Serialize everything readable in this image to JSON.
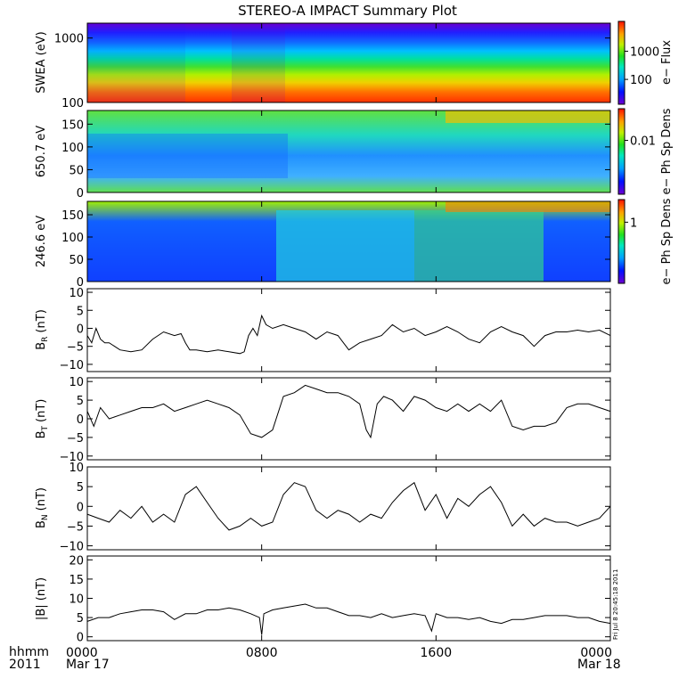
{
  "title": "STEREO-A IMPACT Summary Plot",
  "footer": {
    "left_top": "hhmm",
    "left_bottom": "2011",
    "date_start": "Mar 17",
    "date_end": "Mar 18"
  },
  "stamp": "Fri Jul 8 20:45:18 2011",
  "chart_data": [
    {
      "type": "heatmap",
      "panel": "swea",
      "ylabel": "SWEA (eV)",
      "yscale": "log",
      "ylim": [
        100,
        1700
      ],
      "yticks": [
        {
          "value": 1000,
          "label": "1000"
        },
        {
          "value": 100,
          "label": "100"
        }
      ],
      "colorbar": {
        "label": "e− Flux",
        "scale": "log",
        "ticks": [
          {
            "value": 1000,
            "label": "1000"
          },
          {
            "value": 100,
            "label": "100"
          }
        ]
      },
      "description_of_values": "high flux (red) at low energy, falling to low flux (blue) at high energy"
    },
    {
      "type": "heatmap",
      "panel": "pad650",
      "ylabel": "650.7 eV",
      "ylim": [
        0,
        180
      ],
      "yticks": [
        {
          "value": 150,
          "label": "150"
        },
        {
          "value": 100,
          "label": "100"
        },
        {
          "value": 50,
          "label": "50"
        },
        {
          "value": 0,
          "label": "0"
        }
      ],
      "colorbar": {
        "label": "e− Ph Sp Dens",
        "scale": "log",
        "ticks": [
          {
            "value": 0.01,
            "label": "0.01"
          }
        ]
      }
    },
    {
      "type": "heatmap",
      "panel": "pad246",
      "ylabel": "246.6 eV",
      "ylim": [
        0,
        180
      ],
      "yticks": [
        {
          "value": 150,
          "label": "150"
        },
        {
          "value": 100,
          "label": "100"
        },
        {
          "value": 50,
          "label": "50"
        },
        {
          "value": 0,
          "label": "0"
        }
      ],
      "colorbar": {
        "label": "e− Ph Sp Dens",
        "scale": "log",
        "ticks": [
          {
            "value": 1,
            "label": "1"
          }
        ]
      }
    },
    {
      "type": "line",
      "panel": "br",
      "ylabel": "B",
      "ylabel_sub": "R",
      "ylabel_unit": "(nT)",
      "ylim": [
        -12,
        11
      ],
      "yticks": [
        {
          "value": 10,
          "label": "10"
        },
        {
          "value": 5,
          "label": "5"
        },
        {
          "value": 0,
          "label": "0"
        },
        {
          "value": -5,
          "label": "−5"
        },
        {
          "value": -10,
          "label": "−10"
        }
      ],
      "x": [
        0,
        0.2,
        0.4,
        0.6,
        0.8,
        1,
        1.5,
        2,
        2.5,
        3,
        3.5,
        4,
        4.3,
        4.5,
        4.7,
        5,
        5.5,
        6,
        6.5,
        7,
        7.2,
        7.4,
        7.6,
        7.8,
        8,
        8.2,
        8.5,
        9,
        9.5,
        10,
        10.5,
        11,
        11.5,
        12,
        12.5,
        13,
        13.5,
        14,
        14.5,
        15,
        15.5,
        16,
        16.5,
        17,
        17.5,
        18,
        18.5,
        19,
        19.5,
        20,
        20.5,
        21,
        21.5,
        22,
        22.5,
        23,
        23.5,
        24
      ],
      "values": [
        -2,
        -4,
        0,
        -3,
        -4,
        -4,
        -6,
        -6.5,
        -6,
        -3,
        -1,
        -2,
        -1.5,
        -4,
        -6,
        -6,
        -6.5,
        -6,
        -6.5,
        -7,
        -6.5,
        -2,
        0,
        -2,
        3.5,
        1,
        0,
        1,
        0,
        -1,
        -3,
        -1,
        -2,
        -6,
        -4,
        -3,
        -2,
        1,
        -1,
        0,
        -2,
        -1,
        0.5,
        -1,
        -3,
        -4,
        -1,
        0.5,
        -1,
        -2,
        -5,
        -2,
        -1,
        -1,
        -0.5,
        -1,
        -0.5,
        -2
      ]
    },
    {
      "type": "line",
      "panel": "bt",
      "ylabel": "B",
      "ylabel_sub": "T",
      "ylabel_unit": "(nT)",
      "ylim": [
        -11,
        11
      ],
      "yticks": [
        {
          "value": 10,
          "label": "10"
        },
        {
          "value": 5,
          "label": "5"
        },
        {
          "value": 0,
          "label": "0"
        },
        {
          "value": -5,
          "label": "−5"
        },
        {
          "value": -10,
          "label": "−10"
        }
      ],
      "x": [
        0,
        0.3,
        0.6,
        1,
        1.5,
        2,
        2.5,
        3,
        3.5,
        4,
        4.5,
        5,
        5.5,
        6,
        6.5,
        7,
        7.5,
        8,
        8.5,
        9,
        9.5,
        10,
        10.5,
        11,
        11.5,
        12,
        12.5,
        12.8,
        13,
        13.3,
        13.6,
        14,
        14.5,
        15,
        15.5,
        16,
        16.5,
        17,
        17.5,
        18,
        18.5,
        19,
        19.5,
        20,
        20.5,
        21,
        21.5,
        22,
        22.5,
        23,
        23.5,
        24
      ],
      "values": [
        2,
        -2,
        3,
        0,
        1,
        2,
        3,
        3,
        4,
        2,
        3,
        4,
        5,
        4,
        3,
        1,
        -4,
        -5,
        -3,
        6,
        7,
        9,
        8,
        7,
        7,
        6,
        4,
        -3,
        -5,
        4,
        6,
        5,
        2,
        6,
        5,
        3,
        2,
        4,
        2,
        4,
        2,
        5,
        -2,
        -3,
        -2,
        -2,
        -1,
        3,
        4,
        4,
        3,
        2
      ]
    },
    {
      "type": "line",
      "panel": "bn",
      "ylabel": "B",
      "ylabel_sub": "N",
      "ylabel_unit": "(nT)",
      "ylim": [
        -11,
        10
      ],
      "yticks": [
        {
          "value": 10,
          "label": "10"
        },
        {
          "value": 5,
          "label": "5"
        },
        {
          "value": 0,
          "label": "0"
        },
        {
          "value": -5,
          "label": "−5"
        },
        {
          "value": -10,
          "label": "−10"
        }
      ],
      "x": [
        0,
        0.5,
        1,
        1.5,
        2,
        2.5,
        3,
        3.5,
        4,
        4.5,
        5,
        5.5,
        6,
        6.5,
        7,
        7.5,
        8,
        8.5,
        9,
        9.5,
        10,
        10.5,
        11,
        11.5,
        12,
        12.5,
        13,
        13.5,
        14,
        14.5,
        15,
        15.5,
        16,
        16.5,
        17,
        17.5,
        18,
        18.5,
        19,
        19.5,
        20,
        20.5,
        21,
        21.5,
        22,
        22.5,
        23,
        23.5,
        24
      ],
      "values": [
        -2,
        -3,
        -4,
        -1,
        -3,
        0,
        -4,
        -2,
        -4,
        3,
        5,
        1,
        -3,
        -6,
        -5,
        -3,
        -5,
        -4,
        3,
        6,
        5,
        -1,
        -3,
        -1,
        -2,
        -4,
        -2,
        -3,
        1,
        4,
        6,
        -1,
        3,
        -3,
        2,
        0,
        3,
        5,
        1,
        -5,
        -2,
        -5,
        -3,
        -4,
        -4,
        -5,
        -4,
        -3,
        0
      ]
    },
    {
      "type": "line",
      "panel": "bmag",
      "ylabel": "|B| (nT)",
      "ylim": [
        -1,
        21
      ],
      "yticks": [
        {
          "value": 20,
          "label": "20"
        },
        {
          "value": 15,
          "label": "15"
        },
        {
          "value": 10,
          "label": "10"
        },
        {
          "value": 5,
          "label": "5"
        },
        {
          "value": 0,
          "label": "0"
        }
      ],
      "x": [
        0,
        0.5,
        1,
        1.5,
        2,
        2.5,
        3,
        3.5,
        4,
        4.5,
        5,
        5.5,
        6,
        6.5,
        7,
        7.5,
        7.9,
        8,
        8.1,
        8.5,
        9,
        9.5,
        10,
        10.5,
        11,
        11.5,
        12,
        12.5,
        13,
        13.5,
        14,
        14.5,
        15,
        15.5,
        15.8,
        16,
        16.5,
        17,
        17.5,
        18,
        18.5,
        19,
        19.5,
        20,
        20.5,
        21,
        21.5,
        22,
        22.5,
        23,
        23.5,
        24
      ],
      "values": [
        4,
        5,
        5,
        6,
        6.5,
        7,
        7,
        6.5,
        4.5,
        6,
        6,
        7,
        7,
        7.5,
        7,
        6,
        5,
        0.5,
        6,
        7,
        7.5,
        8,
        8.5,
        7.5,
        7.5,
        6.5,
        5.5,
        5.5,
        5,
        6,
        5,
        5.5,
        6,
        5.5,
        1.5,
        6,
        5,
        5,
        4.5,
        5,
        4,
        3.5,
        4.5,
        4.5,
        5,
        5.5,
        5.5,
        5.5,
        5,
        5,
        4,
        3.5
      ]
    }
  ],
  "xaxis": {
    "xlim": [
      0,
      24
    ],
    "ticks": [
      {
        "value": 0,
        "label": "0000"
      },
      {
        "value": 8,
        "label": "0800"
      },
      {
        "value": 16,
        "label": "1600"
      },
      {
        "value": 24,
        "label": "0000"
      }
    ]
  },
  "colors": {
    "line": "#000000",
    "frame": "#000000"
  }
}
